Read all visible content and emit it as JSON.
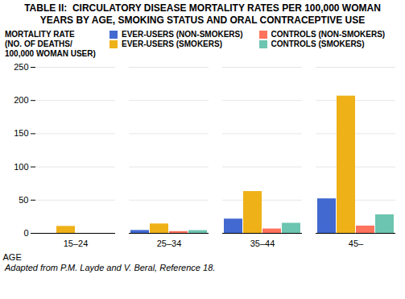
{
  "chart_data": {
    "type": "bar",
    "title": "TABLE II:  CIRCULATORY DISEASE MORTALITY RATES PER 100,000 WOMAN\nYEARS BY AGE, SMOKING STATUS AND ORAL CONTRACEPTIVE USE",
    "y_label": "MORTALITY RATE\n(NO. OF DEATHS/\n100,000 WOMAN USER)",
    "x_label": "AGE",
    "caption": "Adapted from P.M. Layde and V. Beral, Reference 18.",
    "categories": [
      "15–24",
      "25–34",
      "35–44",
      "45–"
    ],
    "series": [
      {
        "name": "EVER-USERS (NON-SMOKERS)",
        "values": [
          0.0,
          4.4,
          21.5,
          52.0
        ]
      },
      {
        "name": "EVER-USERS (SMOKERS)",
        "values": [
          10.5,
          14.2,
          63.0,
          206.7
        ]
      },
      {
        "name": "CONTROLS (NON-SMOKERS)",
        "values": [
          0.0,
          2.7,
          6.6,
          11.0
        ]
      },
      {
        "name": "CONTROLS (SMOKERS)",
        "values": [
          0.0,
          4.2,
          15.2,
          27.9
        ]
      }
    ],
    "ylim": [
      0,
      250
    ],
    "yticks": [
      0,
      50,
      100,
      150,
      200,
      250
    ],
    "grid": true
  }
}
